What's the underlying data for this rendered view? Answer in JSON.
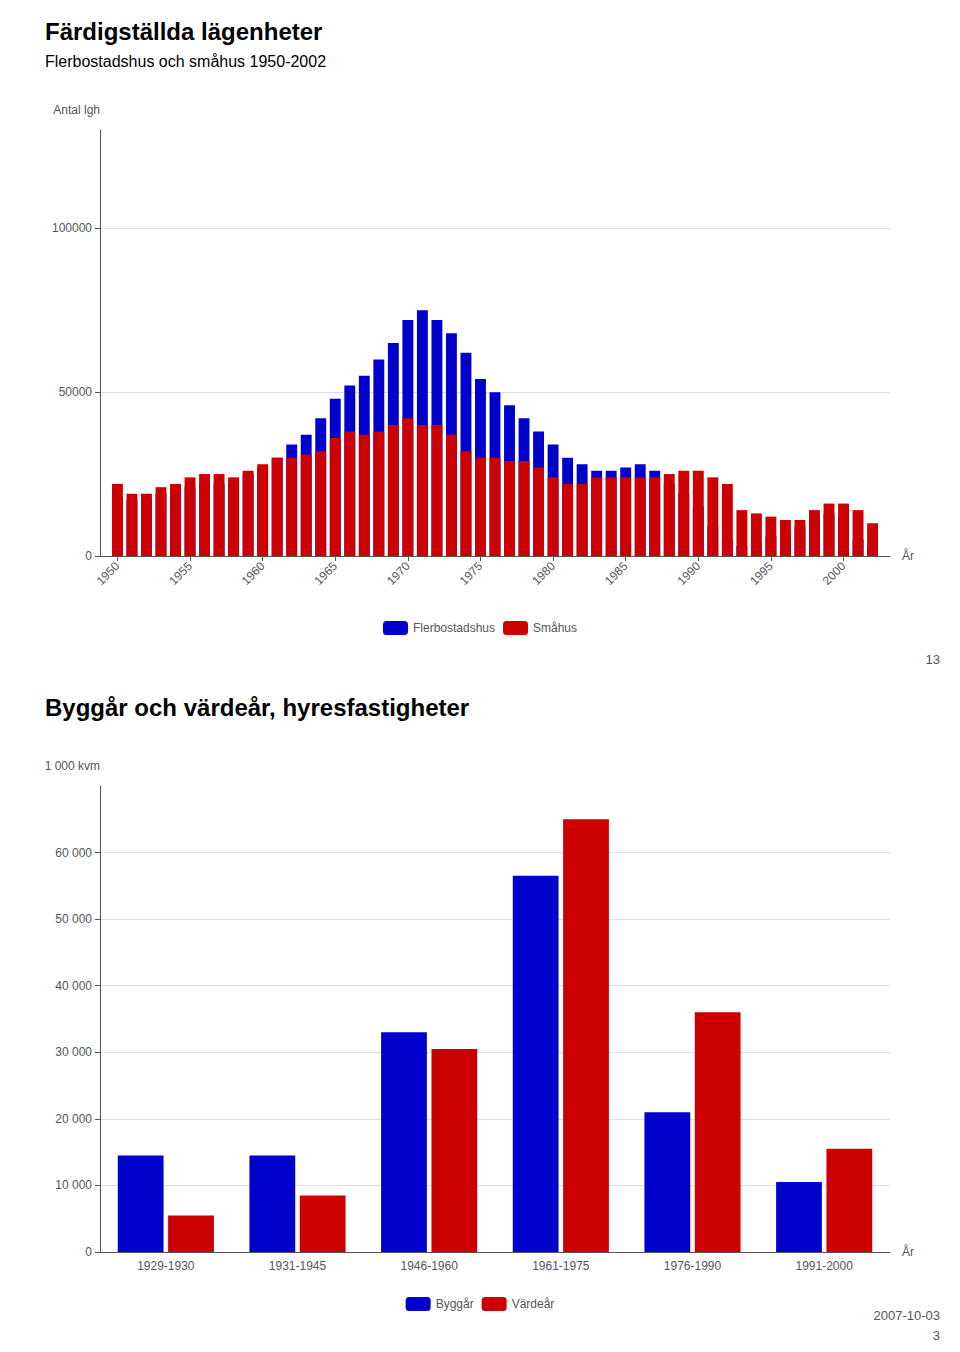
{
  "chart_data": [
    {
      "type": "bar",
      "title": "Färdigställda lägenheter",
      "subtitle": "Flerbostadshus och småhus 1950-2002",
      "xlabel": "År",
      "ylabel": "Antal lgh",
      "x": [
        1950,
        1951,
        1952,
        1953,
        1954,
        1955,
        1956,
        1957,
        1958,
        1959,
        1960,
        1961,
        1962,
        1963,
        1964,
        1965,
        1966,
        1967,
        1968,
        1969,
        1970,
        1971,
        1972,
        1973,
        1974,
        1975,
        1976,
        1977,
        1978,
        1979,
        1980,
        1981,
        1982,
        1983,
        1984,
        1985,
        1986,
        1987,
        1988,
        1989,
        1990,
        1991,
        1992,
        1993,
        1994,
        1995,
        1996,
        1997,
        1998,
        1999,
        2000,
        2001,
        2002
      ],
      "xlim": [
        1948.8,
        2003.2
      ],
      "xticks": [
        1950,
        1955,
        1960,
        1965,
        1970,
        1975,
        1980,
        1985,
        1990,
        1995,
        2000
      ],
      "ylim": [
        0,
        130000
      ],
      "yticks": [
        0,
        50000,
        100000
      ],
      "grid": true,
      "stacked": true,
      "legend": "bottom",
      "series": [
        {
          "name": "Flerbostadshus",
          "color": "#0000cc",
          "values": [
            18000,
            17000,
            17500,
            19000,
            20000,
            21000,
            22000,
            22000,
            23000,
            25000,
            27000,
            30000,
            34000,
            37000,
            42000,
            48000,
            52000,
            55000,
            60000,
            65000,
            72000,
            75000,
            72000,
            68000,
            62000,
            54000,
            50000,
            46000,
            42000,
            38000,
            34000,
            30000,
            28000,
            26000,
            26000,
            27000,
            28000,
            26000,
            22000,
            19000,
            15000,
            9000,
            5000,
            3000,
            4000,
            6000,
            8000,
            9000,
            11000,
            13000,
            12000,
            5000,
            3000
          ]
        },
        {
          "name": "Småhus",
          "color": "#cc0000",
          "values": [
            22000,
            19000,
            19000,
            21000,
            22000,
            24000,
            25000,
            25000,
            24000,
            26000,
            28000,
            30000,
            30000,
            31000,
            32000,
            36000,
            38000,
            37000,
            38000,
            40000,
            42000,
            40000,
            40000,
            37000,
            32000,
            30000,
            30000,
            29000,
            29000,
            27000,
            24000,
            22000,
            22000,
            24000,
            24000,
            24000,
            24000,
            24000,
            25000,
            26000,
            26000,
            24000,
            22000,
            14000,
            13000,
            12000,
            11000,
            11000,
            14000,
            16000,
            16000,
            14000,
            10000
          ]
        }
      ],
      "annotations": [
        "13"
      ]
    },
    {
      "type": "bar",
      "title": "Byggår och värdeår, hyresfastigheter",
      "xlabel": "År",
      "ylabel": "1 000 kvm",
      "categories": [
        "1929-1930",
        "1931-1945",
        "1946-1960",
        "1961-1975",
        "1976-1990",
        "1991-2000"
      ],
      "ylim": [
        0,
        70000
      ],
      "yticks": [
        0,
        {
          "value": 10000,
          "label": "10 000"
        },
        {
          "value": 20000,
          "label": "20 000"
        },
        {
          "value": 30000,
          "label": "30 000"
        },
        {
          "value": 40000,
          "label": "40 000"
        },
        {
          "value": 50000,
          "label": "50 000"
        },
        {
          "value": 60000,
          "label": "60 000"
        }
      ],
      "grid": true,
      "legend": "bottom",
      "series": [
        {
          "name": "Byggår",
          "color": "#0000cc",
          "values": [
            14500,
            14500,
            33000,
            56500,
            21000,
            10500
          ]
        },
        {
          "name": "Värdeår",
          "color": "#cc0000",
          "values": [
            5500,
            8500,
            30500,
            65000,
            36000,
            15500
          ]
        }
      ],
      "annotations": [
        "2007-10-03",
        "3"
      ]
    }
  ]
}
